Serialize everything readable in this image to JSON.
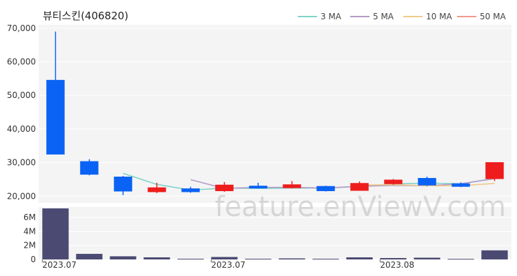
{
  "title": "뷰티스킨(406820)",
  "watermark": "feature.enViewV.com",
  "legend": [
    {
      "label": "3 MA",
      "color": "#7fd3c8"
    },
    {
      "label": "5 MA",
      "color": "#b39ac7"
    },
    {
      "label": "10 MA",
      "color": "#f0c98a"
    },
    {
      "label": "50 MA",
      "color": "#f29a8a"
    }
  ],
  "colors": {
    "up": "#ee1c1c",
    "down": "#0a63f5",
    "volume": "#4a4a72",
    "panel_bg": "#f4f4f4",
    "grid": "#ffffff"
  },
  "chart_data": {
    "type": "candlestick",
    "price_ylim": [
      18000,
      71000
    ],
    "price_ticks": [
      20000,
      30000,
      40000,
      50000,
      60000,
      70000
    ],
    "price_tick_labels": [
      "20,000",
      "30,000",
      "40,000",
      "50,000",
      "60,000",
      "70,000"
    ],
    "volume_ylim": [
      0,
      7500000
    ],
    "volume_ticks": [
      0,
      2000000,
      4000000,
      6000000
    ],
    "volume_tick_labels": [
      "0",
      "2M",
      "4M",
      "6M"
    ],
    "x_labels": [
      {
        "index": 0,
        "label": "2023.07"
      },
      {
        "index": 5,
        "label": "2023.07"
      },
      {
        "index": 10,
        "label": "2023.08"
      }
    ],
    "candles": [
      {
        "open": 54500,
        "high": 69000,
        "low": 32500,
        "close": 32500,
        "volume": 7300000
      },
      {
        "open": 30300,
        "high": 31000,
        "low": 26200,
        "close": 26500,
        "volume": 800000
      },
      {
        "open": 25700,
        "high": 26000,
        "low": 20300,
        "close": 21500,
        "volume": 450000
      },
      {
        "open": 21300,
        "high": 24000,
        "low": 20900,
        "close": 22500,
        "volume": 300000
      },
      {
        "open": 22200,
        "high": 22800,
        "low": 21000,
        "close": 21300,
        "volume": 100000
      },
      {
        "open": 21600,
        "high": 24200,
        "low": 21300,
        "close": 23300,
        "volume": 350000
      },
      {
        "open": 23000,
        "high": 24000,
        "low": 22300,
        "close": 22400,
        "volume": 100000
      },
      {
        "open": 22500,
        "high": 24500,
        "low": 22300,
        "close": 23400,
        "volume": 150000
      },
      {
        "open": 22900,
        "high": 23100,
        "low": 21400,
        "close": 21600,
        "volume": 100000
      },
      {
        "open": 21700,
        "high": 24400,
        "low": 21600,
        "close": 23800,
        "volume": 300000
      },
      {
        "open": 23700,
        "high": 25100,
        "low": 23400,
        "close": 24800,
        "volume": 200000
      },
      {
        "open": 25300,
        "high": 25800,
        "low": 23000,
        "close": 23300,
        "volume": 250000
      },
      {
        "open": 23700,
        "high": 24100,
        "low": 22700,
        "close": 22900,
        "volume": 80000
      },
      {
        "open": 25200,
        "high": 30000,
        "low": 24500,
        "close": 30000,
        "volume": 1300000
      }
    ],
    "moving_averages": [
      {
        "name": "3 MA",
        "color": "#7fd3c8",
        "start": 2,
        "values": [
          26800,
          23500,
          21800,
          22400,
          22300,
          22400,
          22400,
          22900,
          23600,
          23900,
          23700,
          25300
        ]
      },
      {
        "name": "5 MA",
        "color": "#b39ac7",
        "start": 4,
        "values": [
          24900,
          22300,
          22600,
          22600,
          22400,
          22900,
          23200,
          23100,
          23700,
          25200
        ]
      },
      {
        "name": "10 MA",
        "color": "#f0c98a",
        "start": 9,
        "values": [
          23300,
          23400,
          23100,
          23100,
          23800
        ]
      }
    ]
  }
}
